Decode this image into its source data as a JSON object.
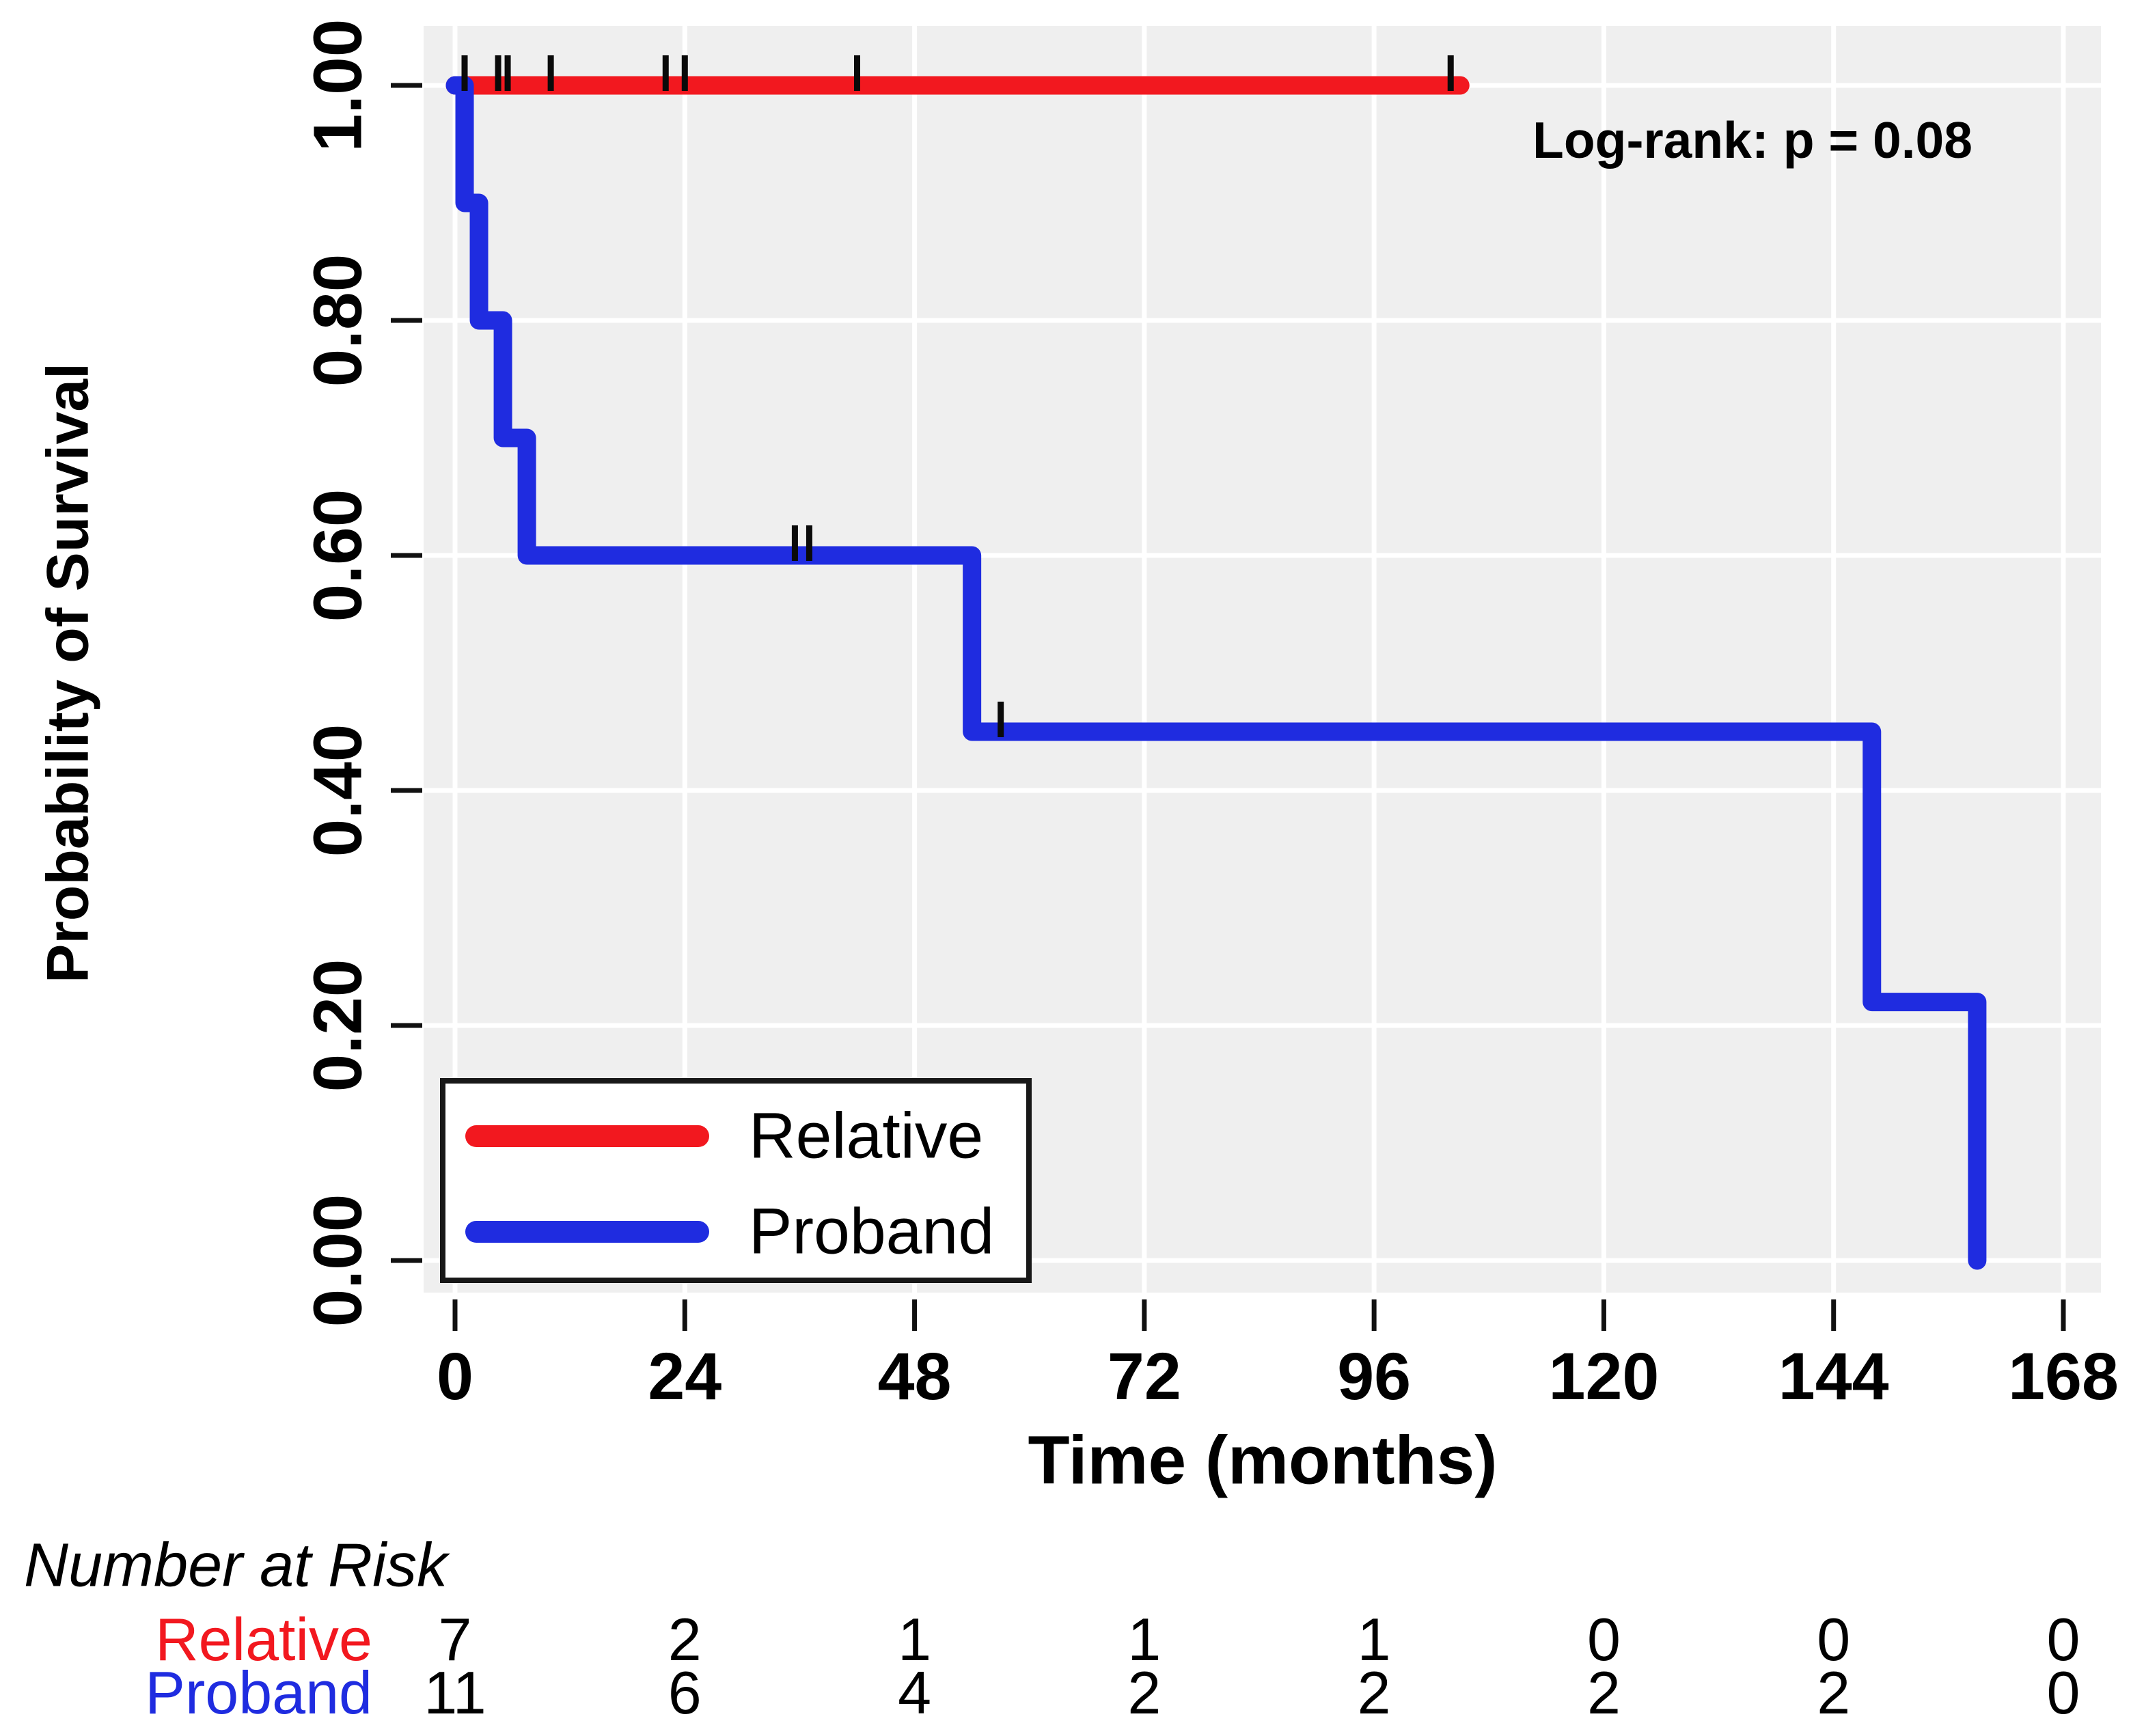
{
  "figure": {
    "type_description": "Kaplan-Meier survival curves comparing Relative vs Proband",
    "background_color": "#ffffff",
    "panel_color": "#efefef",
    "gridline_color": "#ffffff",
    "text_color": "#000000"
  },
  "chart_data": {
    "type": "line",
    "subtype": "kaplan-meier-step",
    "title": "",
    "xlabel": "Time (months)",
    "ylabel": "Probability of Survival",
    "annotation": "Log-rank: p = 0.08",
    "xlim": [
      0,
      168
    ],
    "ylim": [
      0,
      1
    ],
    "x_ticks": [
      0,
      24,
      48,
      72,
      96,
      120,
      144,
      168
    ],
    "y_ticks": [
      {
        "label": "1.00",
        "value": 1.0
      },
      {
        "label": "0.80",
        "value": 0.8
      },
      {
        "label": "0.60",
        "value": 0.6
      },
      {
        "label": "0.40",
        "value": 0.4
      },
      {
        "label": "0.20",
        "value": 0.2
      },
      {
        "label": "0.00",
        "value": 0.0
      }
    ],
    "grid": true,
    "legend_position": "inside-bottom-left",
    "series": [
      {
        "name": "Relative",
        "color": "#f2181f",
        "steps": [
          [
            0,
            1.0
          ],
          [
            105,
            1.0
          ]
        ],
        "censors": [
          [
            1,
            1.0
          ],
          [
            4.5,
            1.0
          ],
          [
            5.5,
            1.0
          ],
          [
            10,
            1.0
          ],
          [
            22,
            1.0
          ],
          [
            24,
            1.0
          ],
          [
            42,
            1.0
          ],
          [
            104,
            1.0
          ]
        ]
      },
      {
        "name": "Proband",
        "color": "#1f2ce0",
        "steps": [
          [
            0,
            1.0
          ],
          [
            1,
            1.0
          ],
          [
            1,
            0.9
          ],
          [
            2.5,
            0.9
          ],
          [
            2.5,
            0.8
          ],
          [
            5,
            0.8
          ],
          [
            5,
            0.7
          ],
          [
            7.5,
            0.7
          ],
          [
            7.5,
            0.6
          ],
          [
            54,
            0.6
          ],
          [
            54,
            0.45
          ],
          [
            148,
            0.45
          ],
          [
            148,
            0.22
          ],
          [
            159,
            0.22
          ],
          [
            159,
            0.0
          ]
        ],
        "censors": [
          [
            35.5,
            0.6
          ],
          [
            37,
            0.6
          ],
          [
            57,
            0.45
          ]
        ]
      }
    ],
    "risk_table": {
      "title": "Number at Risk",
      "times": [
        0,
        24,
        48,
        72,
        96,
        120,
        144,
        168
      ],
      "rows": [
        {
          "label": "Relative",
          "color": "#f2181f",
          "values": [
            "7",
            "2",
            "1",
            "1",
            "1",
            "0",
            "0",
            "0"
          ]
        },
        {
          "label": "Proband",
          "color": "#1f2ce0",
          "values": [
            "11",
            "6",
            "4",
            "2",
            "2",
            "2",
            "2",
            "0"
          ]
        }
      ]
    }
  }
}
